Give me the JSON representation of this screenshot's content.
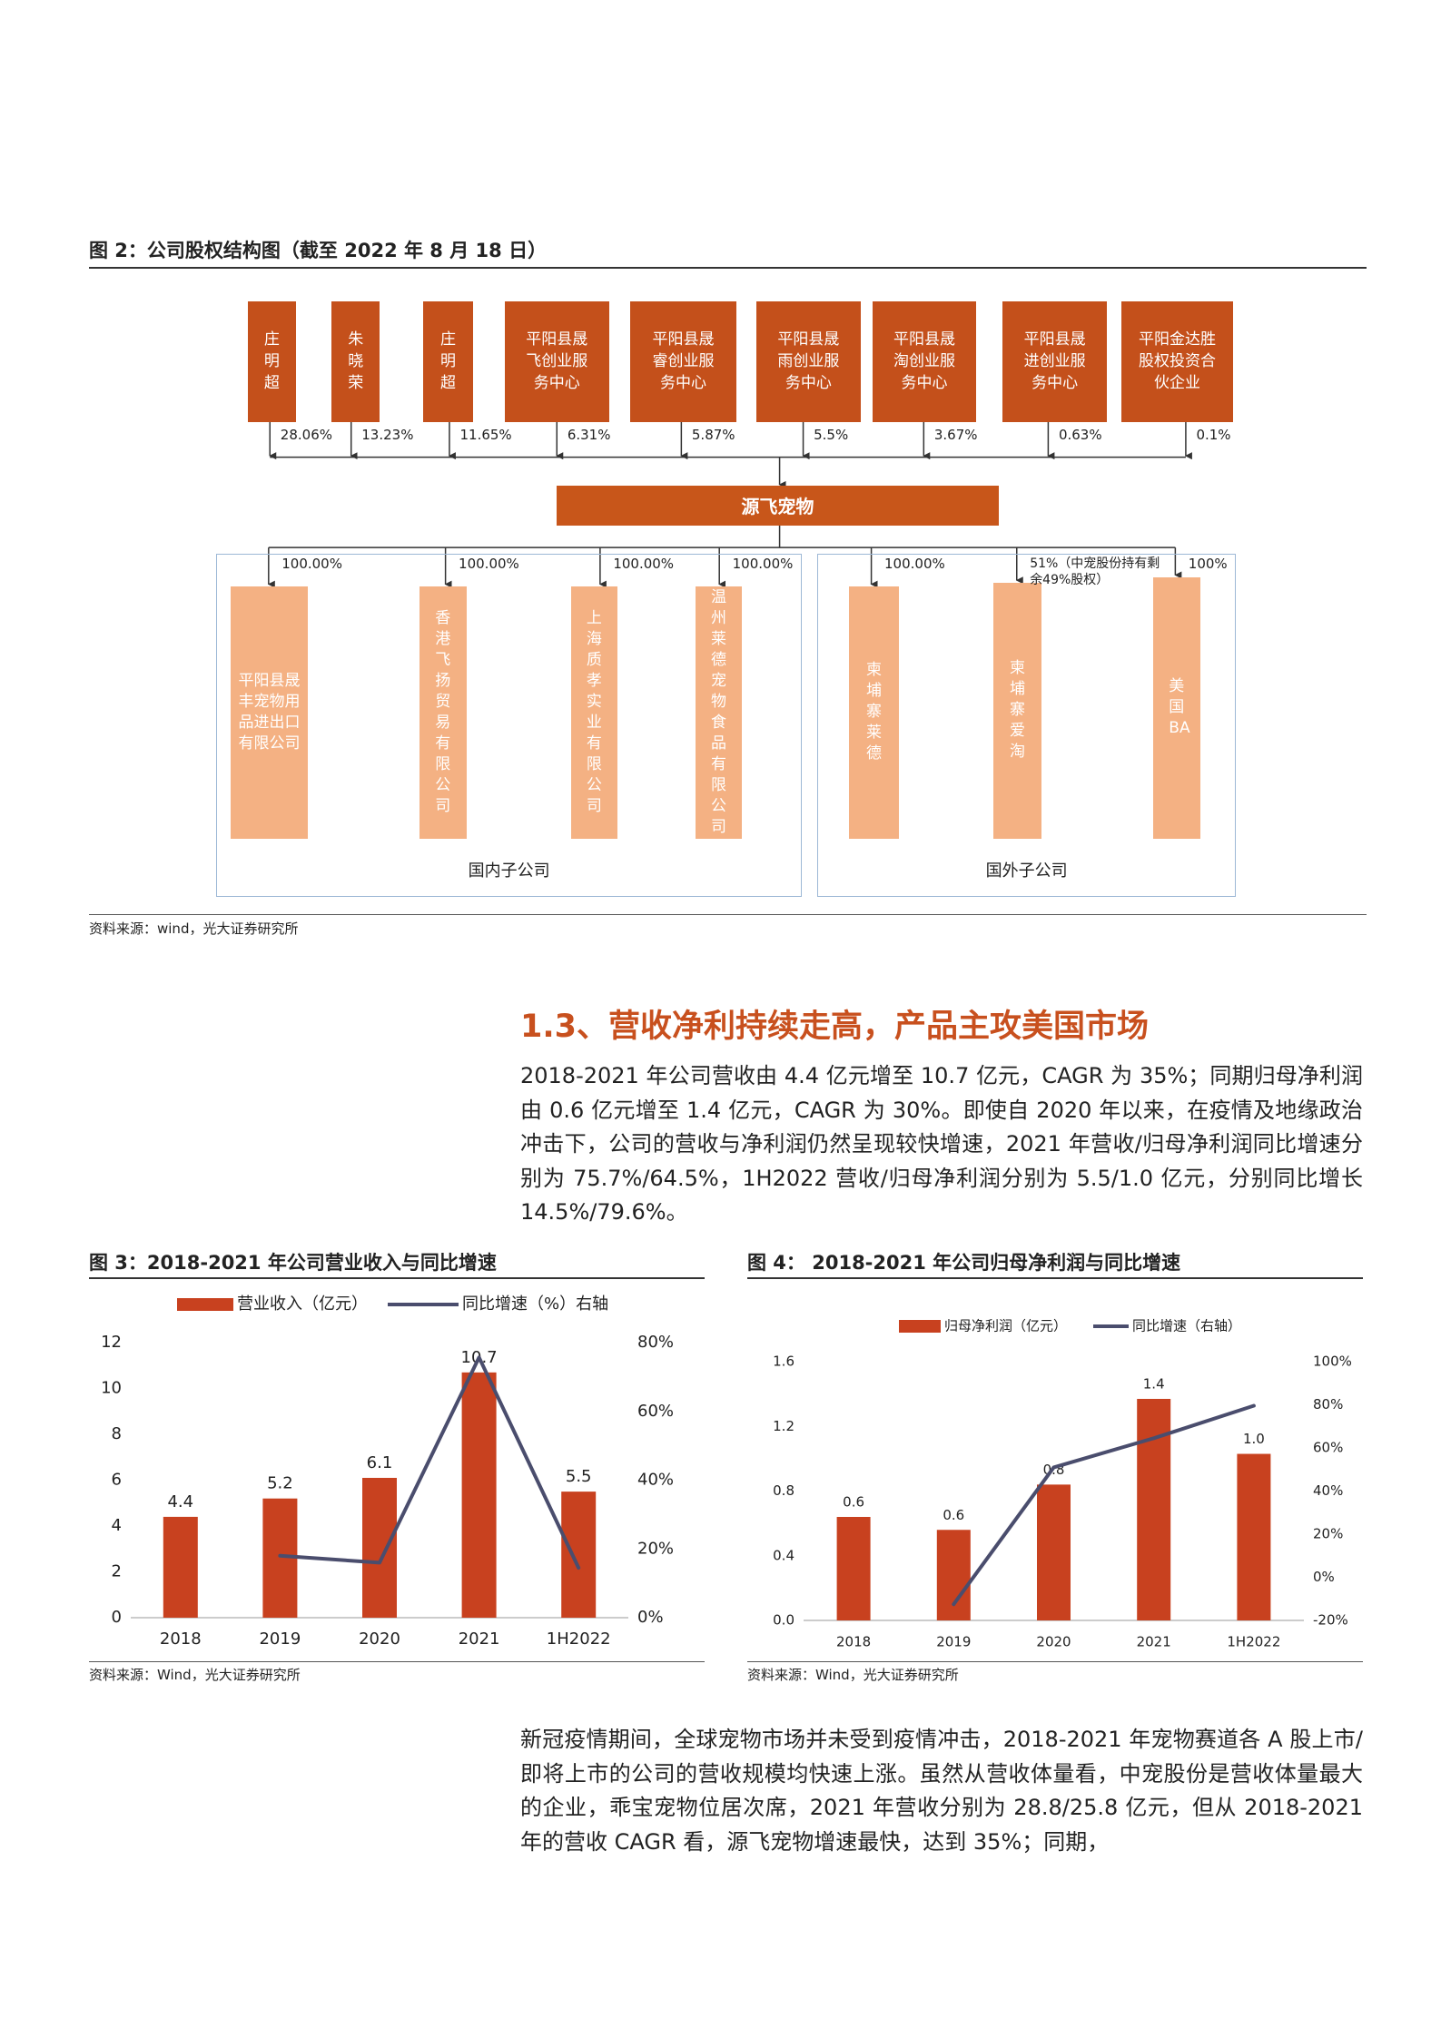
{
  "figure2": {
    "title": "图 2：公司股权结构图（截至 2022 年 8 月 18 日）",
    "shareholders": [
      {
        "name": "庄明超",
        "share": "28.06%"
      },
      {
        "name": "朱晓荣",
        "share": "13.23%"
      },
      {
        "name": "庄明超",
        "share": "11.65%"
      },
      {
        "name": "平阳县晟飞创业服务中心",
        "share": "6.31%"
      },
      {
        "name": "平阳县晟睿创业服务中心",
        "share": "5.87%"
      },
      {
        "name": "平阳县晟雨创业服务中心",
        "share": "5.5%"
      },
      {
        "name": "平阳县晟淘创业服务中心",
        "share": "3.67%"
      },
      {
        "name": "平阳县晟进创业服务中心",
        "share": "0.63%"
      },
      {
        "name": "平阳金达胜股权投资合伙企业",
        "share": "0.1%"
      }
    ],
    "company": "源飞宠物",
    "domestic": {
      "label": "国内子公司",
      "subsidiaries": [
        {
          "name": "平阳县晟丰宠物用品进出口有限公司",
          "share": "100.00%"
        },
        {
          "name": "香港飞扬贸易有限公司",
          "share": "100.00%"
        },
        {
          "name": "上海质孝实业有限公司",
          "share": "100.00%"
        },
        {
          "name": "温州莱德宠物食品有限公司",
          "share": "100.00%"
        }
      ]
    },
    "foreign": {
      "label": "国外子公司",
      "subsidiaries": [
        {
          "name": "柬埔寨莱德",
          "share": "100.00%"
        },
        {
          "name": "柬埔寨爱淘",
          "share": "51%（中宠股份持有剩余49%股权）"
        },
        {
          "name": "美国BA",
          "share": "100%"
        }
      ]
    },
    "source": "资料来源：wind，光大证券研究所"
  },
  "section": {
    "heading": "1.3、营收净利持续走高，产品主攻美国市场",
    "paragraph": "2018-2021 年公司营收由 4.4 亿元增至 10.7 亿元，CAGR 为 35%；同期归母净利润由 0.6 亿元增至 1.4 亿元，CAGR 为 30%。即使自 2020 年以来，在疫情及地缘政治冲击下，公司的营收与净利润仍然呈现较快增速，2021 年营收/归母净利润同比增速分别为 75.7%/64.5%，1H2022 营收/归母净利润分别为 5.5/1.0 亿元，分别同比增长 14.5%/79.6%。"
  },
  "chart_data": [
    {
      "type": "combo",
      "title": "图 3：2018-2021 年公司营业收入与同比增速",
      "categories": [
        "2018",
        "2019",
        "2020",
        "2021",
        "1H2022"
      ],
      "series": [
        {
          "name": "营业收入（亿元）",
          "type": "bar",
          "color": "#c8411f",
          "values": [
            4.4,
            5.2,
            6.1,
            10.7,
            5.5
          ]
        },
        {
          "name": "同比增速（%）右轴",
          "type": "line",
          "color": "#4a4d6d",
          "axis": "y2",
          "values": [
            null,
            18,
            16,
            75.7,
            14.5
          ]
        }
      ],
      "ylim": [
        0,
        12
      ],
      "yticks": [
        0,
        2,
        4,
        6,
        8,
        10,
        12
      ],
      "y2lim": [
        0,
        80
      ],
      "y2ticks": [
        {
          "value": 0,
          "label": "0%"
        },
        {
          "value": 20,
          "label": "20%"
        },
        {
          "value": 40,
          "label": "40%"
        },
        {
          "value": 60,
          "label": "60%"
        },
        {
          "value": 80,
          "label": "80%"
        }
      ],
      "source": "资料来源：Wind，光大证券研究所"
    },
    {
      "type": "combo",
      "title": "图 4： 2018-2021 年公司归母净利润与同比增速",
      "categories": [
        "2018",
        "2019",
        "2020",
        "2021",
        "1H2022"
      ],
      "series": [
        {
          "name": "归母净利润（亿元）",
          "type": "bar",
          "color": "#c8411f",
          "values": [
            0.64,
            0.56,
            0.84,
            1.37,
            1.03
          ],
          "value_labels": [
            "0.6",
            "0.6",
            "0.8",
            "1.4",
            "1.0"
          ]
        },
        {
          "name": "同比增速（右轴）",
          "type": "line",
          "color": "#4a4d6d",
          "axis": "y2",
          "values": [
            null,
            -12.5,
            51,
            64.5,
            79.6
          ]
        }
      ],
      "ylim": [
        0,
        1.6
      ],
      "yticks": [
        {
          "value": 0,
          "label": "0.0"
        },
        0.4,
        0.8,
        1.2,
        1.6
      ],
      "y2lim": [
        -20,
        100
      ],
      "y2ticks": [
        {
          "value": -20,
          "label": "-20%"
        },
        {
          "value": 0,
          "label": "0%"
        },
        {
          "value": 20,
          "label": "20%"
        },
        {
          "value": 40,
          "label": "40%"
        },
        {
          "value": 60,
          "label": "60%"
        },
        {
          "value": 80,
          "label": "80%"
        },
        {
          "value": 100,
          "label": "100%"
        }
      ],
      "source": "资料来源：Wind，光大证券研究所"
    }
  ],
  "closing": {
    "paragraph": "新冠疫情期间，全球宠物市场并未受到疫情冲击，2018-2021 年宠物赛道各 A 股上市/即将上市的公司的营收规模均快速上涨。虽然从营收体量看，中宠股份是营收体量最大的企业，乖宝宠物位居次席，2021 年营收分别为 28.8/25.8 亿元，但从 2018-2021 年的营收 CAGR 看，源飞宠物增速最快，达到 35%；同期，"
  }
}
